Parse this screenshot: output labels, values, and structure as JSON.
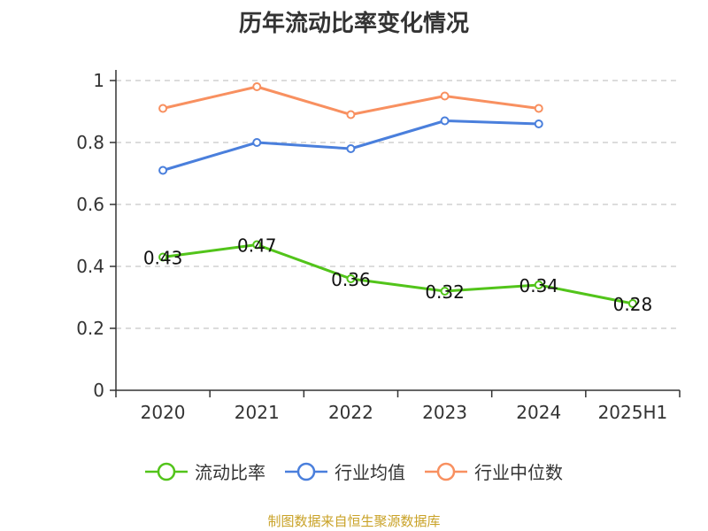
{
  "title": "历年流动比率变化情况",
  "source": "制图数据来自恒生聚源数据库",
  "chart_data": {
    "type": "line",
    "categories": [
      "2020",
      "2021",
      "2022",
      "2023",
      "2024",
      "2025H1"
    ],
    "ylim": [
      0,
      1
    ],
    "yticks": [
      "0",
      "0.2",
      "0.4",
      "0.6",
      "0.8",
      "1"
    ],
    "grid": true,
    "legend_position": "bottom",
    "series": [
      {
        "name": "流动比率",
        "color": "#52c41a",
        "values": [
          0.43,
          0.47,
          0.36,
          0.32,
          0.34,
          0.28
        ],
        "labels": [
          "0.43",
          "0.47",
          "0.36",
          "0.32",
          "0.34",
          "0.28"
        ]
      },
      {
        "name": "行业均值",
        "color": "#4a7fdc",
        "values": [
          0.71,
          0.8,
          0.78,
          0.87,
          0.86,
          null
        ]
      },
      {
        "name": "行业中位数",
        "color": "#f89060",
        "values": [
          0.91,
          0.98,
          0.89,
          0.95,
          0.91,
          null
        ]
      }
    ]
  }
}
